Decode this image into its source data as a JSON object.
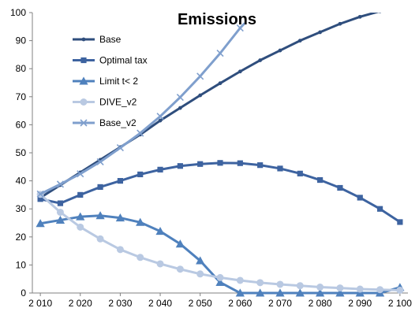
{
  "chart_data": {
    "type": "line",
    "title": "Emissions",
    "xlabel": "",
    "ylabel": "",
    "x_tick_labels": [
      "2 010",
      "2 020",
      "2 030",
      "2 040",
      "2 050",
      "2 060",
      "2 070",
      "2 080",
      "2 090",
      "2 100"
    ],
    "x_ticks": [
      2010,
      2020,
      2030,
      2040,
      2050,
      2060,
      2070,
      2080,
      2090,
      2100
    ],
    "xlim": [
      2008,
      2102
    ],
    "y_tick_labels": [
      "0",
      "10",
      "20",
      "30",
      "40",
      "50",
      "60",
      "70",
      "80",
      "90",
      "100"
    ],
    "y_ticks": [
      0,
      10,
      20,
      30,
      40,
      50,
      60,
      70,
      80,
      90,
      100
    ],
    "ylim": [
      0,
      100
    ],
    "grid": false,
    "legend_position": "top-left",
    "series": [
      {
        "name": "Base",
        "color": "#2f4e7d",
        "marker": "dot",
        "x": [
          2010,
          2015,
          2020,
          2025,
          2030,
          2035,
          2040,
          2045,
          2050,
          2055,
          2060,
          2065,
          2070,
          2075,
          2080,
          2085,
          2090,
          2095,
          2100
        ],
        "values": [
          34,
          38.5,
          43,
          47.5,
          52,
          56.5,
          61.5,
          66,
          70.5,
          74.8,
          79,
          83,
          86.5,
          90,
          93,
          96,
          98.5,
          100.5,
          101
        ]
      },
      {
        "name": "Optimal tax",
        "color": "#3d63a0",
        "marker": "square",
        "x": [
          2010,
          2015,
          2020,
          2025,
          2030,
          2035,
          2040,
          2045,
          2050,
          2055,
          2060,
          2065,
          2070,
          2075,
          2080,
          2085,
          2090,
          2095,
          2100
        ],
        "values": [
          33.5,
          32,
          35,
          37.8,
          40,
          42.3,
          44,
          45.3,
          46,
          46.4,
          46.3,
          45.6,
          44.4,
          42.6,
          40.3,
          37.5,
          34,
          30,
          25.3
        ]
      },
      {
        "name": "Limit t< 2",
        "color": "#4f81bd",
        "marker": "triangle",
        "x": [
          2010,
          2015,
          2020,
          2025,
          2030,
          2035,
          2040,
          2045,
          2050,
          2055,
          2060,
          2065,
          2070,
          2075,
          2080,
          2085,
          2090,
          2095,
          2100
        ],
        "values": [
          24.8,
          26,
          27.2,
          27.6,
          26.8,
          25.2,
          22,
          17.5,
          11.5,
          3.8,
          0,
          0,
          0,
          0,
          0,
          0,
          0,
          0,
          2
        ]
      },
      {
        "name": "DIVE_v2",
        "color": "#b9c9e2",
        "marker": "circle",
        "x": [
          2010,
          2015,
          2020,
          2025,
          2030,
          2035,
          2040,
          2045,
          2050,
          2055,
          2060,
          2065,
          2070,
          2075,
          2080,
          2085,
          2090,
          2095,
          2100
        ],
        "values": [
          35.2,
          28.8,
          23.5,
          19.3,
          15.5,
          12.7,
          10.4,
          8.5,
          6.8,
          5.5,
          4.5,
          3.7,
          3.1,
          2.6,
          2.1,
          1.8,
          1.4,
          1.2,
          1
        ]
      },
      {
        "name": "Base_v2",
        "color": "#7f9fcd",
        "marker": "x",
        "x": [
          2010,
          2015,
          2020,
          2025,
          2030,
          2035,
          2040,
          2045,
          2050,
          2055,
          2060,
          2061
        ],
        "values": [
          35.3,
          38.8,
          42.5,
          46.8,
          51.8,
          57,
          63,
          69.8,
          77.3,
          85.5,
          94.5,
          96
        ]
      }
    ]
  }
}
